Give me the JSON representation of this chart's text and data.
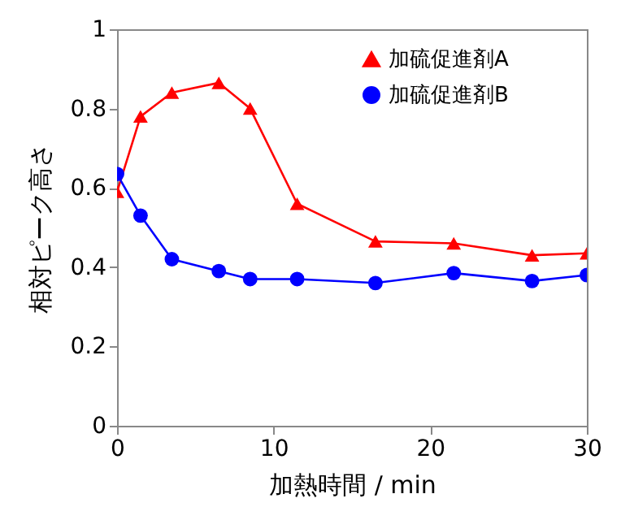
{
  "chart_data": {
    "type": "line",
    "xlabel": "加熱時間 / min",
    "ylabel": "相対ピーク高さ",
    "xlim": [
      0,
      30
    ],
    "xticks": [
      0,
      10,
      20,
      30
    ],
    "ylim": [
      0,
      1
    ],
    "yticks": [
      0,
      0.2,
      0.4,
      0.6,
      0.8,
      1
    ],
    "grid": false,
    "legend": "top right",
    "line_style": "solid",
    "series": [
      {
        "name": "加硫促進剤A",
        "color": "#ff0000",
        "marker": "triangle",
        "x": [
          0,
          1.5,
          3.5,
          6.5,
          8.5,
          11.5,
          16.5,
          21.5,
          26.5,
          30
        ],
        "values": [
          0.59,
          0.78,
          0.84,
          0.865,
          0.8,
          0.56,
          0.465,
          0.46,
          0.43,
          0.435
        ]
      },
      {
        "name": "加硫促進剤B",
        "color": "#0000ff",
        "marker": "circle",
        "x": [
          0,
          1.5,
          3.5,
          6.5,
          8.5,
          11.5,
          16.5,
          21.5,
          26.5,
          30
        ],
        "values": [
          0.635,
          0.53,
          0.42,
          0.39,
          0.37,
          0.37,
          0.36,
          0.385,
          0.365,
          0.38
        ]
      }
    ]
  }
}
